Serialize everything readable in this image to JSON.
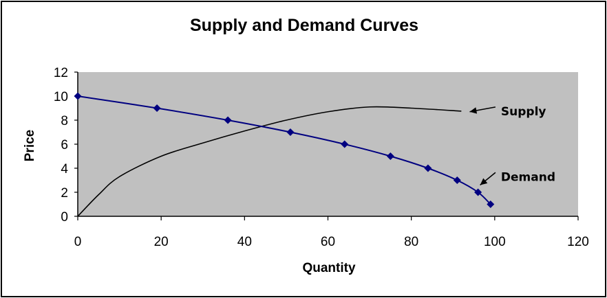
{
  "chart_data": {
    "type": "line",
    "title": "Supply and Demand Curves",
    "xlabel": "Quantity",
    "ylabel": "Price",
    "xlim": [
      0,
      120
    ],
    "ylim": [
      0,
      12
    ],
    "x_ticks": [
      0,
      20,
      40,
      60,
      80,
      100,
      120
    ],
    "y_ticks": [
      0,
      2,
      4,
      6,
      8,
      10,
      12
    ],
    "grid": false,
    "legend": "none",
    "colors": {
      "plot_bg": "#c0c0c0",
      "demand": "#000080",
      "supply": "#000000"
    },
    "series": [
      {
        "name": "Demand",
        "markers": true,
        "points": [
          [
            0,
            10
          ],
          [
            19,
            9
          ],
          [
            36,
            8
          ],
          [
            51,
            7
          ],
          [
            64,
            6
          ],
          [
            75,
            5
          ],
          [
            84,
            4
          ],
          [
            91,
            3
          ],
          [
            96,
            2
          ],
          [
            99,
            1
          ]
        ]
      },
      {
        "name": "Supply",
        "markers": false,
        "points": [
          [
            0,
            0
          ],
          [
            5,
            1.8
          ],
          [
            10,
            3.3
          ],
          [
            20,
            5
          ],
          [
            30,
            6.1
          ],
          [
            40,
            7.1
          ],
          [
            50,
            8
          ],
          [
            60,
            8.7
          ],
          [
            70,
            9.1
          ],
          [
            80,
            9.0
          ],
          [
            92,
            8.75
          ]
        ]
      }
    ],
    "annotations": [
      {
        "text": "Supply",
        "x": 101.5,
        "y": 8.75,
        "arrow_to": [
          94,
          8.7
        ]
      },
      {
        "text": "Demand",
        "x": 101.5,
        "y": 3.3,
        "arrow_to": [
          96.5,
          2.6
        ]
      }
    ]
  }
}
